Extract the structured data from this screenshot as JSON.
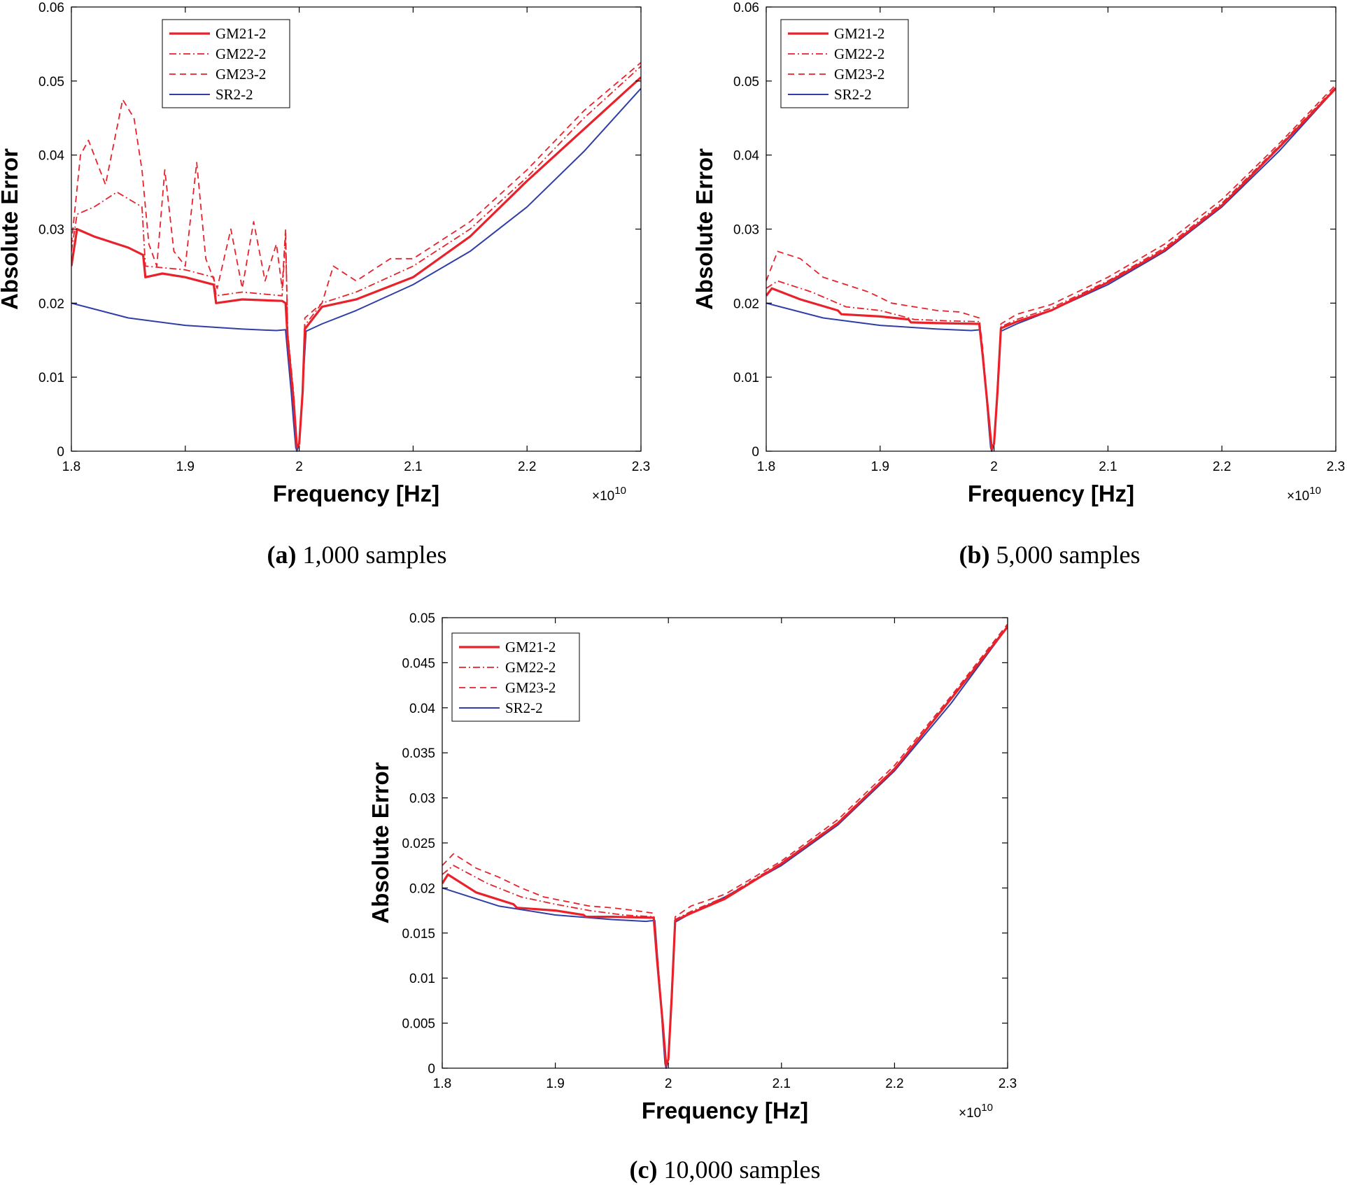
{
  "colors": {
    "gm": "#e8212b",
    "sr": "#2f3ea8",
    "axis": "#000000"
  },
  "chart_data": [
    {
      "type": "line",
      "caption_letter": "(a)",
      "caption_text": " 1,000 samples",
      "xlabel": "Frequency [Hz]",
      "ylabel": "Absolute Error",
      "x_exponent_base": "×10",
      "x_exponent_power": "10",
      "xlim": [
        1.8,
        2.3
      ],
      "ylim": [
        0,
        0.06
      ],
      "xticks": [
        1.8,
        1.9,
        2.0,
        2.1,
        2.2,
        2.3
      ],
      "xtick_labels": [
        "1.8",
        "1.9",
        "2",
        "2.1",
        "2.2",
        "2.3"
      ],
      "yticks": [
        0,
        0.01,
        0.02,
        0.03,
        0.04,
        0.05,
        0.06
      ],
      "ytick_labels": [
        "0",
        "0.01",
        "0.02",
        "0.03",
        "0.04",
        "0.05",
        "0.06"
      ],
      "legend_position": "top-left",
      "series": [
        {
          "name": "GM21-2",
          "style": "solid-thick",
          "x": [
            1.8,
            1.805,
            1.82,
            1.85,
            1.863,
            1.865,
            1.88,
            1.9,
            1.925,
            1.927,
            1.95,
            1.985,
            1.988,
            1.99,
            1.995,
            1.998,
            2.0,
            2.003,
            2.005,
            2.02,
            2.05,
            2.1,
            2.15,
            2.2,
            2.25,
            2.3
          ],
          "y": [
            0.025,
            0.03,
            0.029,
            0.0275,
            0.0265,
            0.0235,
            0.024,
            0.0235,
            0.0225,
            0.02,
            0.0205,
            0.0203,
            0.02,
            0.015,
            0.007,
            0.0005,
            0.001,
            0.008,
            0.0165,
            0.0195,
            0.0205,
            0.0235,
            0.029,
            0.0365,
            0.0435,
            0.0505
          ]
        },
        {
          "name": "GM22-2",
          "style": "dashdot",
          "x": [
            1.8,
            1.805,
            1.82,
            1.84,
            1.862,
            1.865,
            1.9,
            1.925,
            1.927,
            1.95,
            1.985,
            1.988,
            1.99,
            1.995,
            1.998,
            2.0,
            2.003,
            2.005,
            2.02,
            2.05,
            2.1,
            2.15,
            2.2,
            2.25,
            2.3
          ],
          "y": [
            0.027,
            0.032,
            0.033,
            0.035,
            0.033,
            0.025,
            0.0245,
            0.0235,
            0.021,
            0.0215,
            0.021,
            0.029,
            0.016,
            0.008,
            0.001,
            0.0005,
            0.009,
            0.017,
            0.02,
            0.0215,
            0.025,
            0.03,
            0.037,
            0.045,
            0.052
          ]
        },
        {
          "name": "GM23-2",
          "style": "dashed",
          "x": [
            1.8,
            1.808,
            1.815,
            1.83,
            1.845,
            1.855,
            1.862,
            1.868,
            1.875,
            1.882,
            1.89,
            1.9,
            1.91,
            1.918,
            1.928,
            1.94,
            1.95,
            1.96,
            1.97,
            1.98,
            1.985,
            1.988,
            1.99,
            1.995,
            1.998,
            2.0,
            2.003,
            2.005,
            2.02,
            2.03,
            2.05,
            2.08,
            2.1,
            2.15,
            2.2,
            2.25,
            2.3
          ],
          "y": [
            0.028,
            0.04,
            0.042,
            0.036,
            0.0475,
            0.045,
            0.038,
            0.028,
            0.025,
            0.038,
            0.027,
            0.025,
            0.039,
            0.026,
            0.022,
            0.03,
            0.022,
            0.031,
            0.023,
            0.028,
            0.022,
            0.03,
            0.015,
            0.006,
            0.0003,
            0.001,
            0.008,
            0.018,
            0.02,
            0.025,
            0.023,
            0.026,
            0.026,
            0.031,
            0.038,
            0.046,
            0.0525
          ]
        },
        {
          "name": "SR2-2",
          "style": "solid-thin",
          "x": [
            1.8,
            1.85,
            1.9,
            1.95,
            1.98,
            1.988,
            1.99,
            1.993,
            1.995,
            1.997,
            1.998,
            2.0,
            2.002,
            2.004,
            2.006,
            2.02,
            2.05,
            2.1,
            2.15,
            2.2,
            2.25,
            2.3
          ],
          "y": [
            0.02,
            0.018,
            0.017,
            0.0165,
            0.0163,
            0.0164,
            0.013,
            0.008,
            0.004,
            0.0005,
            0.0,
            0.001,
            0.006,
            0.011,
            0.0162,
            0.0172,
            0.019,
            0.0225,
            0.027,
            0.033,
            0.0405,
            0.049
          ]
        }
      ]
    },
    {
      "type": "line",
      "caption_letter": "(b)",
      "caption_text": " 5,000 samples",
      "xlabel": "Frequency [Hz]",
      "ylabel": "Absolute Error",
      "x_exponent_base": "×10",
      "x_exponent_power": "10",
      "xlim": [
        1.8,
        2.3
      ],
      "ylim": [
        0,
        0.06
      ],
      "xticks": [
        1.8,
        1.9,
        2.0,
        2.1,
        2.2,
        2.3
      ],
      "xtick_labels": [
        "1.8",
        "1.9",
        "2",
        "2.1",
        "2.2",
        "2.3"
      ],
      "yticks": [
        0,
        0.01,
        0.02,
        0.03,
        0.04,
        0.05,
        0.06
      ],
      "ytick_labels": [
        "0",
        "0.01",
        "0.02",
        "0.03",
        "0.04",
        "0.05",
        "0.06"
      ],
      "legend_position": "top-left",
      "series": [
        {
          "name": "GM21-2",
          "style": "solid-thick",
          "x": [
            1.8,
            1.805,
            1.83,
            1.863,
            1.866,
            1.9,
            1.925,
            1.927,
            1.95,
            1.987,
            1.99,
            1.995,
            1.998,
            2.0,
            2.003,
            2.006,
            2.02,
            2.05,
            2.1,
            2.15,
            2.2,
            2.25,
            2.3
          ],
          "y": [
            0.021,
            0.022,
            0.0205,
            0.019,
            0.0185,
            0.0182,
            0.0178,
            0.0174,
            0.0173,
            0.0172,
            0.013,
            0.005,
            0.0003,
            0.001,
            0.008,
            0.0166,
            0.0175,
            0.019,
            0.0228,
            0.0272,
            0.0332,
            0.041,
            0.049
          ]
        },
        {
          "name": "GM22-2",
          "style": "dashdot",
          "x": [
            1.8,
            1.81,
            1.84,
            1.87,
            1.9,
            1.93,
            1.96,
            1.987,
            1.99,
            1.995,
            1.998,
            2.0,
            2.003,
            2.006,
            2.02,
            2.05,
            2.1,
            2.15,
            2.2,
            2.25,
            2.3
          ],
          "y": [
            0.022,
            0.023,
            0.0215,
            0.0195,
            0.019,
            0.0178,
            0.0176,
            0.0175,
            0.013,
            0.005,
            0.0003,
            0.001,
            0.008,
            0.0168,
            0.0178,
            0.0193,
            0.023,
            0.0275,
            0.0335,
            0.0412,
            0.0492
          ]
        },
        {
          "name": "GM23-2",
          "style": "dashed",
          "x": [
            1.8,
            1.81,
            1.83,
            1.85,
            1.87,
            1.89,
            1.91,
            1.93,
            1.95,
            1.97,
            1.987,
            1.99,
            1.995,
            1.998,
            2.0,
            2.003,
            2.006,
            2.02,
            2.05,
            2.1,
            2.15,
            2.2,
            2.25,
            2.3
          ],
          "y": [
            0.023,
            0.027,
            0.026,
            0.0235,
            0.0225,
            0.0215,
            0.02,
            0.0195,
            0.019,
            0.0188,
            0.018,
            0.014,
            0.005,
            0.0003,
            0.001,
            0.009,
            0.0172,
            0.0185,
            0.0198,
            0.0235,
            0.028,
            0.034,
            0.0415,
            0.0495
          ]
        },
        {
          "name": "SR2-2",
          "style": "solid-thin",
          "x": [
            1.8,
            1.85,
            1.9,
            1.95,
            1.98,
            1.988,
            1.99,
            1.993,
            1.995,
            1.997,
            1.998,
            2.0,
            2.002,
            2.004,
            2.006,
            2.02,
            2.05,
            2.1,
            2.15,
            2.2,
            2.25,
            2.3
          ],
          "y": [
            0.02,
            0.018,
            0.017,
            0.0165,
            0.0163,
            0.0164,
            0.013,
            0.008,
            0.004,
            0.0005,
            0.0,
            0.001,
            0.006,
            0.011,
            0.0162,
            0.0172,
            0.019,
            0.0225,
            0.027,
            0.033,
            0.0405,
            0.049
          ]
        }
      ]
    },
    {
      "type": "line",
      "caption_letter": "(c)",
      "caption_text": " 10,000 samples",
      "xlabel": "Frequency [Hz]",
      "ylabel": "Absolute Error",
      "x_exponent_base": "×10",
      "x_exponent_power": "10",
      "xlim": [
        1.8,
        2.3
      ],
      "ylim": [
        0,
        0.05
      ],
      "xticks": [
        1.8,
        1.9,
        2.0,
        2.1,
        2.2,
        2.3
      ],
      "xtick_labels": [
        "1.8",
        "1.9",
        "2",
        "2.1",
        "2.2",
        "2.3"
      ],
      "yticks": [
        0,
        0.005,
        0.01,
        0.015,
        0.02,
        0.025,
        0.03,
        0.035,
        0.04,
        0.045,
        0.05
      ],
      "ytick_labels": [
        "0",
        "0.005",
        "0.01",
        "0.015",
        "0.02",
        "0.025",
        "0.03",
        "0.035",
        "0.04",
        "0.045",
        "0.05"
      ],
      "legend_position": "top-left",
      "series": [
        {
          "name": "GM21-2",
          "style": "solid-thick",
          "x": [
            1.8,
            1.805,
            1.83,
            1.863,
            1.866,
            1.9,
            1.925,
            1.927,
            1.95,
            1.987,
            1.99,
            1.995,
            1.998,
            2.0,
            2.003,
            2.006,
            2.02,
            2.05,
            2.1,
            2.15,
            2.2,
            2.25,
            2.3
          ],
          "y": [
            0.0205,
            0.0215,
            0.0195,
            0.0182,
            0.0178,
            0.0175,
            0.017,
            0.0168,
            0.0168,
            0.0167,
            0.012,
            0.005,
            0.0003,
            0.001,
            0.008,
            0.0164,
            0.0172,
            0.0188,
            0.0227,
            0.0272,
            0.0332,
            0.041,
            0.049
          ]
        },
        {
          "name": "GM22-2",
          "style": "dashdot",
          "x": [
            1.8,
            1.81,
            1.84,
            1.87,
            1.9,
            1.93,
            1.96,
            1.987,
            1.99,
            1.995,
            1.998,
            2.0,
            2.003,
            2.006,
            2.02,
            2.05,
            2.1,
            2.15,
            2.2,
            2.25,
            2.3
          ],
          "y": [
            0.0215,
            0.0225,
            0.0205,
            0.019,
            0.0182,
            0.0175,
            0.017,
            0.0168,
            0.012,
            0.005,
            0.0003,
            0.001,
            0.008,
            0.0165,
            0.0174,
            0.019,
            0.0228,
            0.0273,
            0.0333,
            0.0411,
            0.0491
          ]
        },
        {
          "name": "GM23-2",
          "style": "dashed",
          "x": [
            1.8,
            1.81,
            1.83,
            1.85,
            1.87,
            1.89,
            1.91,
            1.93,
            1.95,
            1.97,
            1.987,
            1.99,
            1.995,
            1.998,
            2.0,
            2.003,
            2.006,
            2.02,
            2.05,
            2.1,
            2.15,
            2.2,
            2.25,
            2.3
          ],
          "y": [
            0.0225,
            0.0238,
            0.0222,
            0.0212,
            0.02,
            0.019,
            0.0185,
            0.018,
            0.0178,
            0.0175,
            0.0172,
            0.013,
            0.005,
            0.0003,
            0.001,
            0.009,
            0.0168,
            0.018,
            0.0193,
            0.023,
            0.0276,
            0.0336,
            0.0413,
            0.0493
          ]
        },
        {
          "name": "SR2-2",
          "style": "solid-thin",
          "x": [
            1.8,
            1.85,
            1.9,
            1.95,
            1.98,
            1.988,
            1.99,
            1.993,
            1.995,
            1.997,
            1.998,
            2.0,
            2.002,
            2.004,
            2.006,
            2.02,
            2.05,
            2.1,
            2.15,
            2.2,
            2.25,
            2.3
          ],
          "y": [
            0.02,
            0.018,
            0.017,
            0.0165,
            0.0163,
            0.0164,
            0.013,
            0.008,
            0.004,
            0.0005,
            0.0,
            0.001,
            0.006,
            0.011,
            0.0162,
            0.0172,
            0.019,
            0.0225,
            0.027,
            0.033,
            0.0405,
            0.049
          ]
        }
      ]
    }
  ]
}
